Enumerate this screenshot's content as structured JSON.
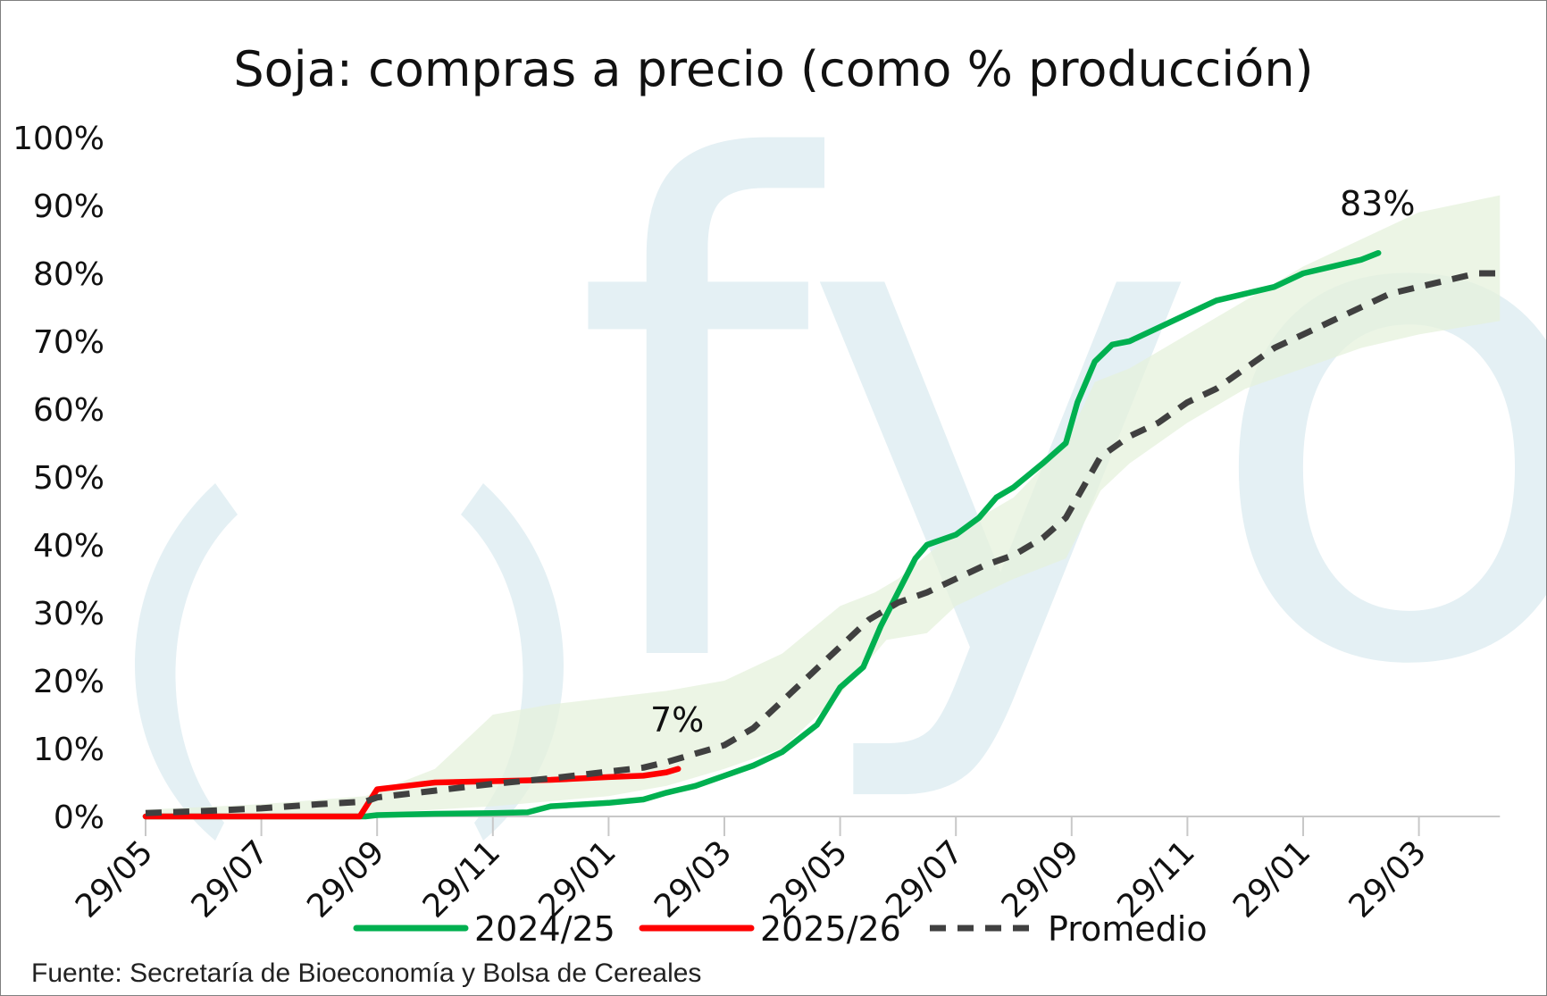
{
  "chart_data": {
    "type": "line",
    "title": "Soja: compras a precio (como % producción)",
    "xlabel": "",
    "ylabel": "",
    "x_ticks": [
      "29/05",
      "29/07",
      "29/09",
      "29/11",
      "29/01",
      "29/03",
      "29/05",
      "29/07",
      "29/09",
      "29/11",
      "29/01",
      "29/03"
    ],
    "y_ticks": [
      "0%",
      "10%",
      "20%",
      "30%",
      "40%",
      "50%",
      "60%",
      "70%",
      "80%",
      "90%",
      "100%"
    ],
    "ylim": [
      0,
      100
    ],
    "xlim_months": [
      0,
      23.4
    ],
    "grid": false,
    "legend_position": "bottom",
    "series": [
      {
        "name": "2024/25",
        "color": "#00b050",
        "style": "solid",
        "points": [
          [
            0,
            0
          ],
          [
            1,
            0
          ],
          [
            2,
            0
          ],
          [
            3,
            0
          ],
          [
            3.8,
            0
          ],
          [
            4,
            0.2
          ],
          [
            5,
            0.4
          ],
          [
            6,
            0.5
          ],
          [
            6.6,
            0.6
          ],
          [
            7,
            1.5
          ],
          [
            8,
            2.0
          ],
          [
            8.6,
            2.5
          ],
          [
            9,
            3.5
          ],
          [
            9.5,
            4.5
          ],
          [
            10,
            6.0
          ],
          [
            10.5,
            7.5
          ],
          [
            11,
            9.5
          ],
          [
            11.6,
            13.5
          ],
          [
            12,
            19
          ],
          [
            12.4,
            22
          ],
          [
            12.7,
            28
          ],
          [
            13,
            33
          ],
          [
            13.3,
            38
          ],
          [
            13.5,
            40
          ],
          [
            14,
            41.5
          ],
          [
            14.4,
            44
          ],
          [
            14.7,
            47
          ],
          [
            15,
            48.5
          ],
          [
            15.5,
            52
          ],
          [
            15.9,
            55
          ],
          [
            16.1,
            61
          ],
          [
            16.4,
            67
          ],
          [
            16.7,
            69.5
          ],
          [
            17,
            70
          ],
          [
            17.5,
            72
          ],
          [
            18,
            74
          ],
          [
            18.5,
            76
          ],
          [
            19,
            77
          ],
          [
            19.5,
            78
          ],
          [
            20,
            80
          ],
          [
            20.5,
            81
          ],
          [
            21,
            82
          ],
          [
            21.3,
            83
          ]
        ]
      },
      {
        "name": "2025/26",
        "color": "#ff0000",
        "style": "solid",
        "points": [
          [
            0,
            0
          ],
          [
            1,
            0
          ],
          [
            2,
            0
          ],
          [
            3,
            0
          ],
          [
            3.7,
            0
          ],
          [
            4,
            4.0
          ],
          [
            4.5,
            4.5
          ],
          [
            5,
            5.0
          ],
          [
            6,
            5.2
          ],
          [
            7,
            5.4
          ],
          [
            8,
            5.8
          ],
          [
            8.6,
            6.0
          ],
          [
            9,
            6.5
          ],
          [
            9.2,
            7.0
          ]
        ]
      },
      {
        "name": "Promedio",
        "color": "#404040",
        "style": "dashed",
        "points": [
          [
            0,
            0.5
          ],
          [
            1,
            0.8
          ],
          [
            2,
            1.2
          ],
          [
            3,
            1.8
          ],
          [
            3.8,
            2.2
          ],
          [
            4,
            2.8
          ],
          [
            5,
            3.8
          ],
          [
            6,
            4.8
          ],
          [
            7,
            5.6
          ],
          [
            8,
            6.6
          ],
          [
            8.6,
            7.2
          ],
          [
            9,
            8.0
          ],
          [
            10,
            10.5
          ],
          [
            10.5,
            13
          ],
          [
            11,
            17
          ],
          [
            11.5,
            21
          ],
          [
            12,
            25
          ],
          [
            12.5,
            29
          ],
          [
            13,
            31.5
          ],
          [
            13.5,
            33
          ],
          [
            14,
            35
          ],
          [
            14.5,
            37
          ],
          [
            15,
            38.5
          ],
          [
            15.5,
            41
          ],
          [
            15.9,
            44
          ],
          [
            16.5,
            53
          ],
          [
            17,
            56
          ],
          [
            17.5,
            58
          ],
          [
            18,
            61
          ],
          [
            18.5,
            63
          ],
          [
            19,
            66
          ],
          [
            19.5,
            69
          ],
          [
            20,
            71
          ],
          [
            20.5,
            73
          ],
          [
            21,
            75
          ],
          [
            21.5,
            77
          ],
          [
            22,
            78
          ],
          [
            22.5,
            79
          ],
          [
            23,
            80
          ],
          [
            23.4,
            80
          ]
        ]
      }
    ],
    "band": {
      "name": "",
      "color": "#e6f2dc",
      "lower": [
        [
          0,
          0
        ],
        [
          2,
          0.2
        ],
        [
          3.8,
          0.3
        ],
        [
          5,
          1
        ],
        [
          6,
          1.5
        ],
        [
          8,
          3
        ],
        [
          9,
          4.5
        ],
        [
          10,
          7
        ],
        [
          11,
          10
        ],
        [
          12,
          18
        ],
        [
          12.8,
          26
        ],
        [
          13.5,
          27
        ],
        [
          14,
          31
        ],
        [
          15,
          35
        ],
        [
          15.9,
          38
        ],
        [
          16.5,
          48
        ],
        [
          17,
          52
        ],
        [
          18,
          58
        ],
        [
          19,
          63
        ],
        [
          20,
          66
        ],
        [
          21,
          69
        ],
        [
          22,
          71
        ],
        [
          23.4,
          73
        ]
      ],
      "upper": [
        [
          0,
          1
        ],
        [
          2,
          1.8
        ],
        [
          3.8,
          3
        ],
        [
          5,
          7
        ],
        [
          6,
          15
        ],
        [
          7,
          16.5
        ],
        [
          8,
          17.5
        ],
        [
          9,
          18.5
        ],
        [
          10,
          20
        ],
        [
          11,
          24
        ],
        [
          12,
          31
        ],
        [
          12.6,
          33
        ],
        [
          13,
          35
        ],
        [
          14,
          42
        ],
        [
          15,
          47
        ],
        [
          15.9,
          55
        ],
        [
          16.4,
          64
        ],
        [
          17,
          66
        ],
        [
          18,
          71
        ],
        [
          19,
          76
        ],
        [
          20,
          81
        ],
        [
          21,
          85
        ],
        [
          22,
          89
        ],
        [
          23.4,
          91.5
        ]
      ]
    },
    "annotations": [
      {
        "text": "7%",
        "x": 9.2,
        "y": 7
      },
      {
        "text": "83%",
        "x": 21.3,
        "y": 83
      }
    ]
  },
  "watermark": {
    "text": "fyo",
    "color": "#e4f0f4"
  },
  "source": "Fuente: Secretaría de Bioeconomía y Bolsa de Cereales"
}
